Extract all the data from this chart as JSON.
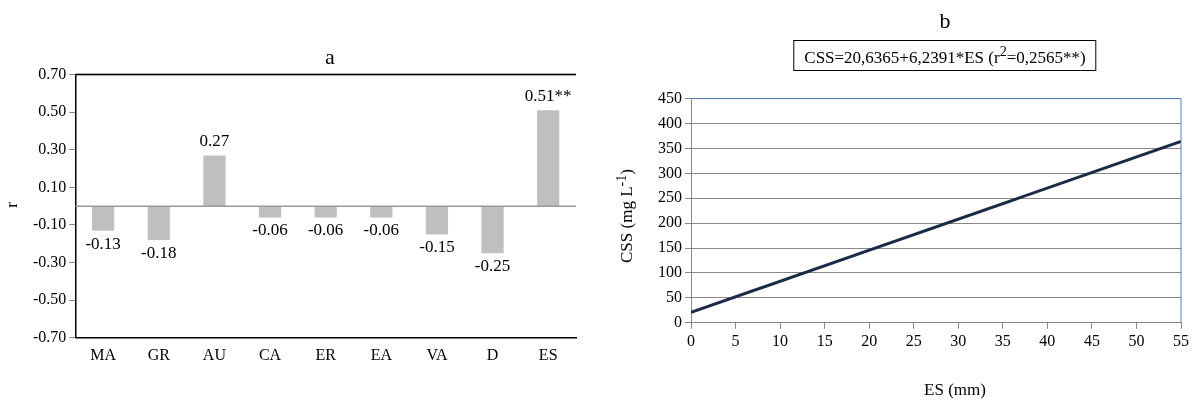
{
  "chart_data": [
    {
      "type": "bar",
      "title": "a",
      "ylabel": "r",
      "categories": [
        "MA",
        "GR",
        "AU",
        "CA",
        "ER",
        "EA",
        "VA",
        "D",
        "ES"
      ],
      "values": [
        -0.13,
        -0.18,
        0.27,
        -0.06,
        -0.06,
        -0.06,
        -0.15,
        -0.25,
        0.51
      ],
      "value_labels": [
        "-0.13",
        "-0.18",
        "0.27",
        "-0.06",
        "-0.06",
        "-0.06",
        "-0.15",
        "-0.25",
        "0.51**"
      ],
      "color": "#bfbfbf",
      "ylim": [
        -0.7,
        0.7
      ],
      "yticks": [
        {
          "value": -0.7,
          "label": "-0.70"
        },
        {
          "value": -0.5,
          "label": "-0.50"
        },
        {
          "value": -0.3,
          "label": "-0.30"
        },
        {
          "value": -0.1,
          "label": "-0.10"
        },
        {
          "value": 0.1,
          "label": "0.10"
        },
        {
          "value": 0.3,
          "label": "0.30"
        },
        {
          "value": 0.5,
          "label": "0.50"
        },
        {
          "value": 0.7,
          "label": "0.70"
        }
      ]
    },
    {
      "type": "line",
      "title": "b",
      "subtitle": "CSS=20,6365+6,2391*ES (r$^{2}$=0,2565**)",
      "xlabel": "ES (mm)",
      "ylabel": "CSS (mg L$^{-1}$)",
      "x": [
        0,
        55
      ],
      "values": [
        21,
        364
      ],
      "color": "#1b2a47",
      "xlim": [
        0,
        55
      ],
      "xticks": [
        0,
        5,
        10,
        15,
        20,
        25,
        30,
        35,
        40,
        45,
        50,
        55
      ],
      "ylim": [
        0,
        450
      ],
      "yticks": [
        0,
        50,
        100,
        150,
        200,
        250,
        300,
        350,
        400,
        450
      ],
      "grid": "y",
      "marker": "none"
    }
  ]
}
